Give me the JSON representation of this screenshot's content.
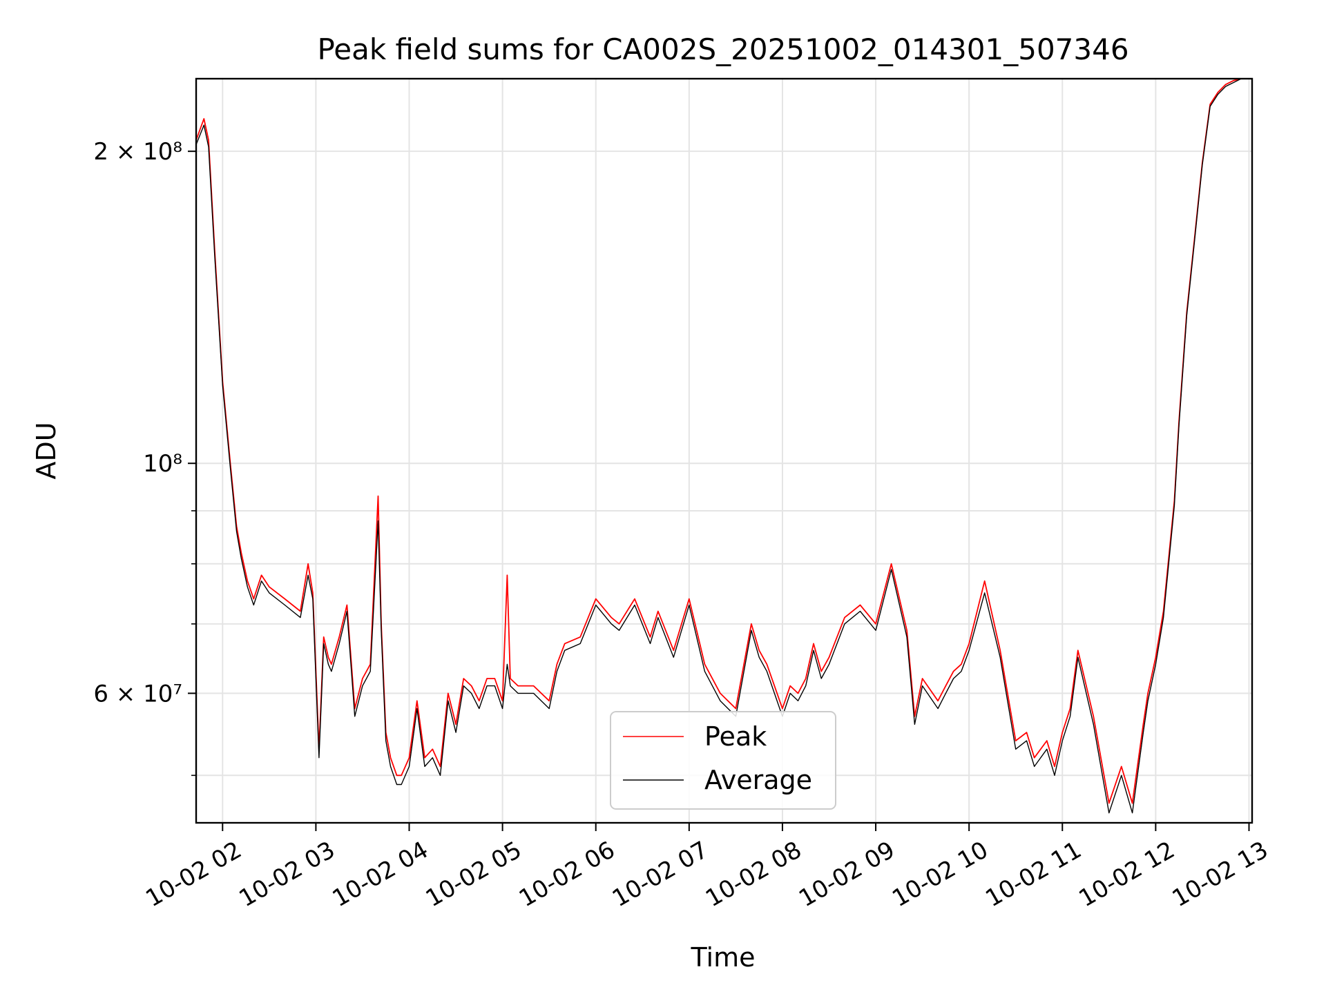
{
  "chart_data": {
    "type": "line",
    "title": "Peak field sums for CA002S_20251002_014301_507346",
    "xlabel": "Time",
    "ylabel": "ADU",
    "yscale": "log",
    "xlim": [
      "2025-10-02T01:43",
      "2025-10-02T13:02"
    ],
    "ylim": [
      45000000,
      235000000
    ],
    "grid": true,
    "legend_position": "lower-center",
    "x_ticks": [
      "10-02 02",
      "10-02 03",
      "10-02 04",
      "10-02 05",
      "10-02 06",
      "10-02 07",
      "10-02 08",
      "10-02 09",
      "10-02 10",
      "10-02 11",
      "10-02 12",
      "10-02 13"
    ],
    "y_ticks": [
      {
        "value": 200000000,
        "label": "2 × 10⁸"
      },
      {
        "value": 100000000,
        "label": "10⁸"
      },
      {
        "value": 60000000,
        "label": "6 × 10⁷"
      }
    ],
    "y_minor_ticks": [
      50000000,
      70000000,
      80000000,
      90000000
    ],
    "x": [
      "2025-10-02T01:43",
      "2025-10-02T01:48",
      "2025-10-02T01:51",
      "2025-10-02T01:55",
      "2025-10-02T02:00",
      "2025-10-02T02:05",
      "2025-10-02T02:09",
      "2025-10-02T02:12",
      "2025-10-02T02:16",
      "2025-10-02T02:20",
      "2025-10-02T02:25",
      "2025-10-02T02:30",
      "2025-10-02T02:40",
      "2025-10-02T02:50",
      "2025-10-02T02:55",
      "2025-10-02T02:58",
      "2025-10-02T03:02",
      "2025-10-02T03:05",
      "2025-10-02T03:08",
      "2025-10-02T03:10",
      "2025-10-02T03:15",
      "2025-10-02T03:20",
      "2025-10-02T03:25",
      "2025-10-02T03:30",
      "2025-10-02T03:35",
      "2025-10-02T03:40",
      "2025-10-02T03:42",
      "2025-10-02T03:45",
      "2025-10-02T03:48",
      "2025-10-02T03:52",
      "2025-10-02T03:55",
      "2025-10-02T04:00",
      "2025-10-02T04:05",
      "2025-10-02T04:10",
      "2025-10-02T04:15",
      "2025-10-02T04:20",
      "2025-10-02T04:25",
      "2025-10-02T04:30",
      "2025-10-02T04:35",
      "2025-10-02T04:40",
      "2025-10-02T04:45",
      "2025-10-02T04:50",
      "2025-10-02T04:55",
      "2025-10-02T05:00",
      "2025-10-02T05:03",
      "2025-10-02T05:05",
      "2025-10-02T05:10",
      "2025-10-02T05:20",
      "2025-10-02T05:30",
      "2025-10-02T05:35",
      "2025-10-02T05:40",
      "2025-10-02T05:50",
      "2025-10-02T06:00",
      "2025-10-02T06:10",
      "2025-10-02T06:15",
      "2025-10-02T06:25",
      "2025-10-02T06:35",
      "2025-10-02T06:40",
      "2025-10-02T06:50",
      "2025-10-02T07:00",
      "2025-10-02T07:10",
      "2025-10-02T07:20",
      "2025-10-02T07:30",
      "2025-10-02T07:40",
      "2025-10-02T07:45",
      "2025-10-02T07:50",
      "2025-10-02T08:00",
      "2025-10-02T08:05",
      "2025-10-02T08:10",
      "2025-10-02T08:15",
      "2025-10-02T08:20",
      "2025-10-02T08:25",
      "2025-10-02T08:30",
      "2025-10-02T08:40",
      "2025-10-02T08:50",
      "2025-10-02T09:00",
      "2025-10-02T09:10",
      "2025-10-02T09:20",
      "2025-10-02T09:25",
      "2025-10-02T09:30",
      "2025-10-02T09:40",
      "2025-10-02T09:45",
      "2025-10-02T09:50",
      "2025-10-02T09:55",
      "2025-10-02T10:00",
      "2025-10-02T10:10",
      "2025-10-02T10:20",
      "2025-10-02T10:30",
      "2025-10-02T10:37",
      "2025-10-02T10:42",
      "2025-10-02T10:50",
      "2025-10-02T10:55",
      "2025-10-02T11:00",
      "2025-10-02T11:05",
      "2025-10-02T11:10",
      "2025-10-02T11:20",
      "2025-10-02T11:30",
      "2025-10-02T11:38",
      "2025-10-02T11:45",
      "2025-10-02T11:52",
      "2025-10-02T11:55",
      "2025-10-02T12:00",
      "2025-10-02T12:05",
      "2025-10-02T12:08",
      "2025-10-02T12:12",
      "2025-10-02T12:15",
      "2025-10-02T12:20",
      "2025-10-02T12:25",
      "2025-10-02T12:30",
      "2025-10-02T12:35",
      "2025-10-02T12:40",
      "2025-10-02T12:45",
      "2025-10-02T12:50",
      "2025-10-02T12:55",
      "2025-10-02T13:00",
      "2025-10-02T13:02"
    ],
    "series": [
      {
        "name": "Peak",
        "color": "#ff0000",
        "values": [
          205000000,
          215000000,
          205000000,
          160000000,
          120000000,
          100000000,
          87000000,
          82000000,
          77000000,
          74000000,
          78000000,
          76000000,
          74000000,
          72000000,
          80000000,
          75000000,
          53000000,
          68000000,
          65000000,
          64000000,
          68000000,
          73000000,
          58000000,
          62000000,
          64000000,
          93000000,
          70000000,
          55000000,
          52000000,
          50000000,
          50000000,
          52000000,
          59000000,
          52000000,
          53000000,
          51000000,
          60000000,
          56000000,
          62000000,
          61000000,
          59000000,
          62000000,
          62000000,
          59000000,
          78000000,
          62000000,
          61000000,
          61000000,
          59000000,
          64000000,
          67000000,
          68000000,
          74000000,
          71000000,
          70000000,
          74000000,
          68000000,
          72000000,
          66000000,
          74000000,
          64000000,
          60000000,
          58000000,
          70000000,
          66000000,
          64000000,
          58000000,
          61000000,
          60000000,
          62000000,
          67000000,
          63000000,
          65000000,
          71000000,
          73000000,
          70000000,
          80000000,
          69000000,
          57000000,
          62000000,
          59000000,
          61000000,
          63000000,
          64000000,
          67000000,
          77000000,
          66000000,
          54000000,
          55000000,
          52000000,
          54000000,
          51000000,
          55000000,
          58000000,
          66000000,
          57000000,
          47000000,
          51000000,
          47000000,
          56000000,
          60000000,
          65000000,
          72000000,
          80000000,
          92000000,
          110000000,
          140000000,
          165000000,
          195000000,
          222000000,
          228000000,
          232000000,
          234000000,
          235000000,
          235000000,
          235000000
        ]
      },
      {
        "name": "Average",
        "color": "#000000",
        "values": [
          203000000,
          212000000,
          202000000,
          158000000,
          119000000,
          99000000,
          86000000,
          81000000,
          76000000,
          73000000,
          77000000,
          75000000,
          73000000,
          71000000,
          78000000,
          74000000,
          52000000,
          67000000,
          64000000,
          63000000,
          67000000,
          72000000,
          57000000,
          61000000,
          63000000,
          88000000,
          69000000,
          54000000,
          51000000,
          49000000,
          49000000,
          51000000,
          58000000,
          51000000,
          52000000,
          50000000,
          59000000,
          55000000,
          61000000,
          60000000,
          58000000,
          61000000,
          61000000,
          58000000,
          64000000,
          61000000,
          60000000,
          60000000,
          58000000,
          63000000,
          66000000,
          67000000,
          73000000,
          70000000,
          69000000,
          73000000,
          67000000,
          71000000,
          65000000,
          73000000,
          63000000,
          59000000,
          57000000,
          69000000,
          65000000,
          63000000,
          57000000,
          60000000,
          59000000,
          61000000,
          66000000,
          62000000,
          64000000,
          70000000,
          72000000,
          69000000,
          79000000,
          68000000,
          56000000,
          61000000,
          58000000,
          60000000,
          62000000,
          63000000,
          66000000,
          75000000,
          65000000,
          53000000,
          54000000,
          51000000,
          53000000,
          50000000,
          54000000,
          57000000,
          65000000,
          56000000,
          46000000,
          50000000,
          46000000,
          55000000,
          59000000,
          64000000,
          71000000,
          79000000,
          91000000,
          109000000,
          139000000,
          164000000,
          194000000,
          221000000,
          227000000,
          231000000,
          233000000,
          235000000,
          235000000,
          235000000
        ]
      }
    ]
  }
}
